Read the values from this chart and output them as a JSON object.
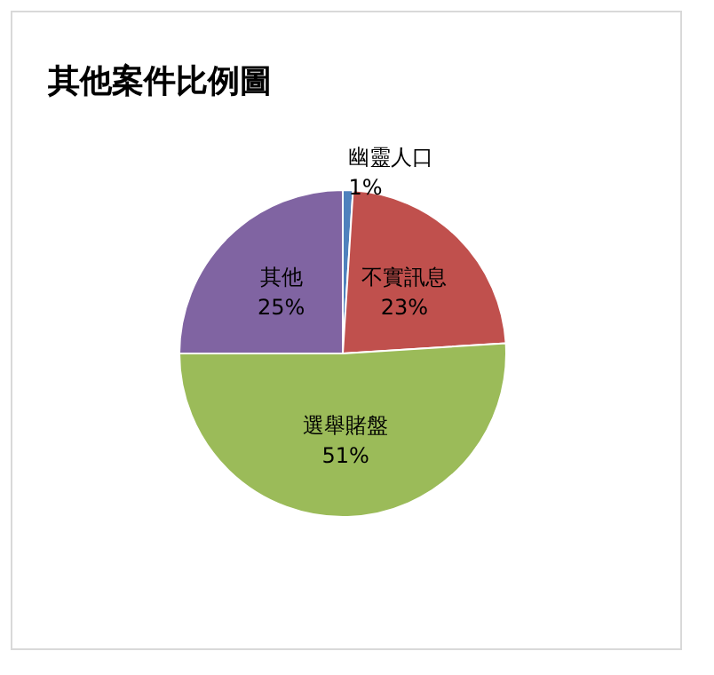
{
  "chart_data": {
    "type": "pie",
    "title": "其他案件比例圖",
    "categories": [
      "幽靈人口",
      "不實訊息",
      "選舉賭盤",
      "其他"
    ],
    "values": [
      1,
      23,
      51,
      25
    ],
    "value_labels": [
      "1%",
      "23%",
      "51%",
      "25%"
    ],
    "colors": [
      "#4f81bd",
      "#c0504d",
      "#9bbb59",
      "#8064a2"
    ],
    "legend": false
  }
}
